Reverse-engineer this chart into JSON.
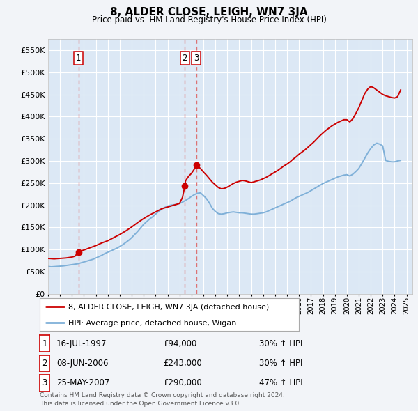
{
  "title": "8, ALDER CLOSE, LEIGH, WN7 3JA",
  "subtitle": "Price paid vs. HM Land Registry's House Price Index (HPI)",
  "ylim": [
    0,
    575000
  ],
  "yticks": [
    0,
    50000,
    100000,
    150000,
    200000,
    250000,
    300000,
    350000,
    400000,
    450000,
    500000,
    550000
  ],
  "xlim_start": 1995.0,
  "xlim_end": 2025.5,
  "background_color": "#f2f4f8",
  "plot_bg": "#dce8f5",
  "grid_color": "#ffffff",
  "red_line_color": "#cc0000",
  "blue_line_color": "#7fb0d8",
  "dashed_color": "#dd6666",
  "sale_points": [
    {
      "date": 1997.54,
      "price": 94000,
      "label": "1"
    },
    {
      "date": 2006.44,
      "price": 243000,
      "label": "2"
    },
    {
      "date": 2007.4,
      "price": 290000,
      "label": "3"
    }
  ],
  "legend_label_red": "8, ALDER CLOSE, LEIGH, WN7 3JA (detached house)",
  "legend_label_blue": "HPI: Average price, detached house, Wigan",
  "table_rows": [
    {
      "num": "1",
      "date": "16-JUL-1997",
      "price": "£94,000",
      "change": "30% ↑ HPI"
    },
    {
      "num": "2",
      "date": "08-JUN-2006",
      "price": "£243,000",
      "change": "30% ↑ HPI"
    },
    {
      "num": "3",
      "date": "25-MAY-2007",
      "price": "£290,000",
      "change": "47% ↑ HPI"
    }
  ],
  "footer_line1": "Contains HM Land Registry data © Crown copyright and database right 2024.",
  "footer_line2": "This data is licensed under the Open Government Licence v3.0.",
  "hpi_data": {
    "years": [
      1995.0,
      1995.25,
      1995.5,
      1995.75,
      1996.0,
      1996.25,
      1996.5,
      1996.75,
      1997.0,
      1997.25,
      1997.5,
      1997.75,
      1998.0,
      1998.25,
      1998.5,
      1998.75,
      1999.0,
      1999.25,
      1999.5,
      1999.75,
      2000.0,
      2000.25,
      2000.5,
      2000.75,
      2001.0,
      2001.25,
      2001.5,
      2001.75,
      2002.0,
      2002.25,
      2002.5,
      2002.75,
      2003.0,
      2003.25,
      2003.5,
      2003.75,
      2004.0,
      2004.25,
      2004.5,
      2004.75,
      2005.0,
      2005.25,
      2005.5,
      2005.75,
      2006.0,
      2006.25,
      2006.5,
      2006.75,
      2007.0,
      2007.25,
      2007.5,
      2007.75,
      2008.0,
      2008.25,
      2008.5,
      2008.75,
      2009.0,
      2009.25,
      2009.5,
      2009.75,
      2010.0,
      2010.25,
      2010.5,
      2010.75,
      2011.0,
      2011.25,
      2011.5,
      2011.75,
      2012.0,
      2012.25,
      2012.5,
      2012.75,
      2013.0,
      2013.25,
      2013.5,
      2013.75,
      2014.0,
      2014.25,
      2014.5,
      2014.75,
      2015.0,
      2015.25,
      2015.5,
      2015.75,
      2016.0,
      2016.25,
      2016.5,
      2016.75,
      2017.0,
      2017.25,
      2017.5,
      2017.75,
      2018.0,
      2018.25,
      2018.5,
      2018.75,
      2019.0,
      2019.25,
      2019.5,
      2019.75,
      2020.0,
      2020.25,
      2020.5,
      2020.75,
      2021.0,
      2021.25,
      2021.5,
      2021.75,
      2022.0,
      2022.25,
      2022.5,
      2022.75,
      2023.0,
      2023.25,
      2023.5,
      2023.75,
      2024.0,
      2024.25,
      2024.5
    ],
    "values": [
      62000,
      61000,
      61500,
      62000,
      62500,
      63000,
      64000,
      65000,
      66000,
      67000,
      68000,
      70000,
      72000,
      74000,
      76000,
      78000,
      81000,
      84000,
      87000,
      91000,
      94000,
      97000,
      100000,
      103000,
      107000,
      111000,
      116000,
      121000,
      127000,
      134000,
      141000,
      149000,
      157000,
      163000,
      169000,
      174000,
      180000,
      186000,
      191000,
      195000,
      198000,
      200000,
      201000,
      202000,
      204000,
      207000,
      211000,
      215000,
      220000,
      224000,
      227000,
      228000,
      222000,
      215000,
      205000,
      193000,
      186000,
      181000,
      180000,
      181000,
      183000,
      184000,
      185000,
      184000,
      183000,
      183000,
      182000,
      181000,
      180000,
      180000,
      181000,
      182000,
      183000,
      185000,
      188000,
      191000,
      194000,
      197000,
      200000,
      203000,
      206000,
      209000,
      213000,
      217000,
      220000,
      223000,
      226000,
      229000,
      233000,
      237000,
      241000,
      245000,
      249000,
      252000,
      255000,
      258000,
      261000,
      264000,
      266000,
      268000,
      269000,
      266000,
      270000,
      276000,
      283000,
      294000,
      306000,
      318000,
      328000,
      336000,
      340000,
      338000,
      334000,
      301000,
      299000,
      298000,
      298000,
      300000,
      301000
    ]
  },
  "red_line_data": {
    "years": [
      1995.0,
      1995.5,
      1996.0,
      1996.5,
      1997.0,
      1997.25,
      1997.54,
      1997.75,
      1998.0,
      1998.5,
      1999.0,
      1999.5,
      2000.0,
      2000.5,
      2001.0,
      2001.5,
      2002.0,
      2002.5,
      2003.0,
      2003.5,
      2004.0,
      2004.5,
      2005.0,
      2005.5,
      2006.0,
      2006.25,
      2006.44,
      2006.5,
      2006.75,
      2007.0,
      2007.25,
      2007.4,
      2007.5,
      2007.75,
      2008.0,
      2008.25,
      2008.5,
      2008.75,
      2009.0,
      2009.25,
      2009.5,
      2009.75,
      2010.0,
      2010.25,
      2010.5,
      2010.75,
      2011.0,
      2011.25,
      2011.5,
      2011.75,
      2012.0,
      2012.25,
      2012.5,
      2012.75,
      2013.0,
      2013.25,
      2013.5,
      2013.75,
      2014.0,
      2014.25,
      2014.5,
      2014.75,
      2015.0,
      2015.25,
      2015.5,
      2015.75,
      2016.0,
      2016.25,
      2016.5,
      2016.75,
      2017.0,
      2017.25,
      2017.5,
      2017.75,
      2018.0,
      2018.25,
      2018.5,
      2018.75,
      2019.0,
      2019.25,
      2019.5,
      2019.75,
      2020.0,
      2020.25,
      2020.5,
      2020.75,
      2021.0,
      2021.25,
      2021.5,
      2021.75,
      2022.0,
      2022.25,
      2022.5,
      2022.75,
      2023.0,
      2023.25,
      2023.5,
      2023.75,
      2024.0,
      2024.25,
      2024.5
    ],
    "values": [
      80000,
      79000,
      80000,
      81000,
      83000,
      85000,
      94000,
      97000,
      99000,
      104000,
      109000,
      115000,
      120000,
      127000,
      134000,
      142000,
      151000,
      161000,
      170000,
      178000,
      185000,
      192000,
      196000,
      200000,
      204000,
      218000,
      243000,
      255000,
      265000,
      272000,
      282000,
      290000,
      288000,
      283000,
      275000,
      268000,
      260000,
      252000,
      246000,
      240000,
      237000,
      238000,
      241000,
      245000,
      249000,
      252000,
      254000,
      256000,
      255000,
      253000,
      251000,
      253000,
      255000,
      257000,
      260000,
      263000,
      267000,
      271000,
      275000,
      279000,
      284000,
      289000,
      293000,
      298000,
      304000,
      309000,
      315000,
      320000,
      325000,
      331000,
      337000,
      343000,
      350000,
      357000,
      363000,
      369000,
      374000,
      379000,
      383000,
      387000,
      390000,
      393000,
      393000,
      388000,
      395000,
      407000,
      420000,
      436000,
      452000,
      462000,
      468000,
      465000,
      460000,
      455000,
      450000,
      447000,
      445000,
      443000,
      442000,
      445000,
      460000
    ]
  }
}
